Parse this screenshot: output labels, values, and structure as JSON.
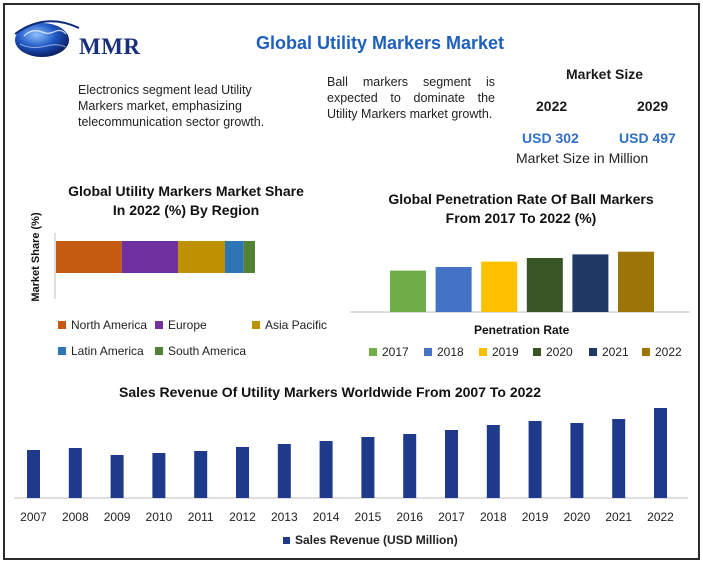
{
  "header": {
    "logo_text": "MMR",
    "title": "Global Utility Markers Market"
  },
  "notes": {
    "left": "Electronics segment lead Utility Markers market, emphasizing telecommunication sector growth.",
    "middle": "Ball markers segment is expected to dominate the Utility Markers market growth."
  },
  "market_size": {
    "label": "Market Size",
    "year_start": "2022",
    "year_end": "2029",
    "value_start": "USD 302",
    "value_end": "USD 497",
    "caption": "Market Size in Million"
  },
  "chart_data": [
    {
      "type": "bar",
      "orientation": "horizontal-stacked",
      "title": "Global Utility Markers Market Share In 2022 (%) By Region",
      "ylabel": "Market Share (%)",
      "series": [
        {
          "name": "North America",
          "value": 35,
          "color": "#c55a11"
        },
        {
          "name": "Europe",
          "value": 30,
          "color": "#7030a0"
        },
        {
          "name": "Asia Pacific",
          "value": 25,
          "color": "#bf9000"
        },
        {
          "name": "Latin America",
          "value": 10,
          "color": "#2e75b6"
        },
        {
          "name": "South America",
          "value": 6,
          "color": "#548235"
        }
      ],
      "legend": "bottom"
    },
    {
      "type": "bar",
      "title": "Global Penetration Rate Of Ball Markers From 2017 To 2022 (%)",
      "xlabel": "Penetration Rate",
      "categories": [
        "2017",
        "2018",
        "2019",
        "2020",
        "2021",
        "2022"
      ],
      "values": [
        46,
        50,
        56,
        60,
        64,
        67
      ],
      "ylim": [
        0,
        80
      ],
      "colors": [
        "#70ad47",
        "#4472c4",
        "#ffc000",
        "#375623",
        "#203864",
        "#9c7506"
      ],
      "legend": "bottom"
    },
    {
      "type": "bar",
      "title": "Sales Revenue Of Utility Markers Worldwide From 2007 To 2022",
      "categories": [
        "2007",
        "2008",
        "2009",
        "2010",
        "2011",
        "2012",
        "2013",
        "2014",
        "2015",
        "2016",
        "2017",
        "2018",
        "2019",
        "2020",
        "2021",
        "2022"
      ],
      "series": [
        {
          "name": "Sales Revenue (USD Million)",
          "values": [
            48,
            50,
            43,
            45,
            47,
            51,
            54,
            57,
            61,
            64,
            68,
            73,
            77,
            75,
            79,
            90
          ]
        }
      ],
      "ylim": [
        0,
        100
      ],
      "color": "#1f3a8a",
      "legend": "bottom"
    }
  ]
}
